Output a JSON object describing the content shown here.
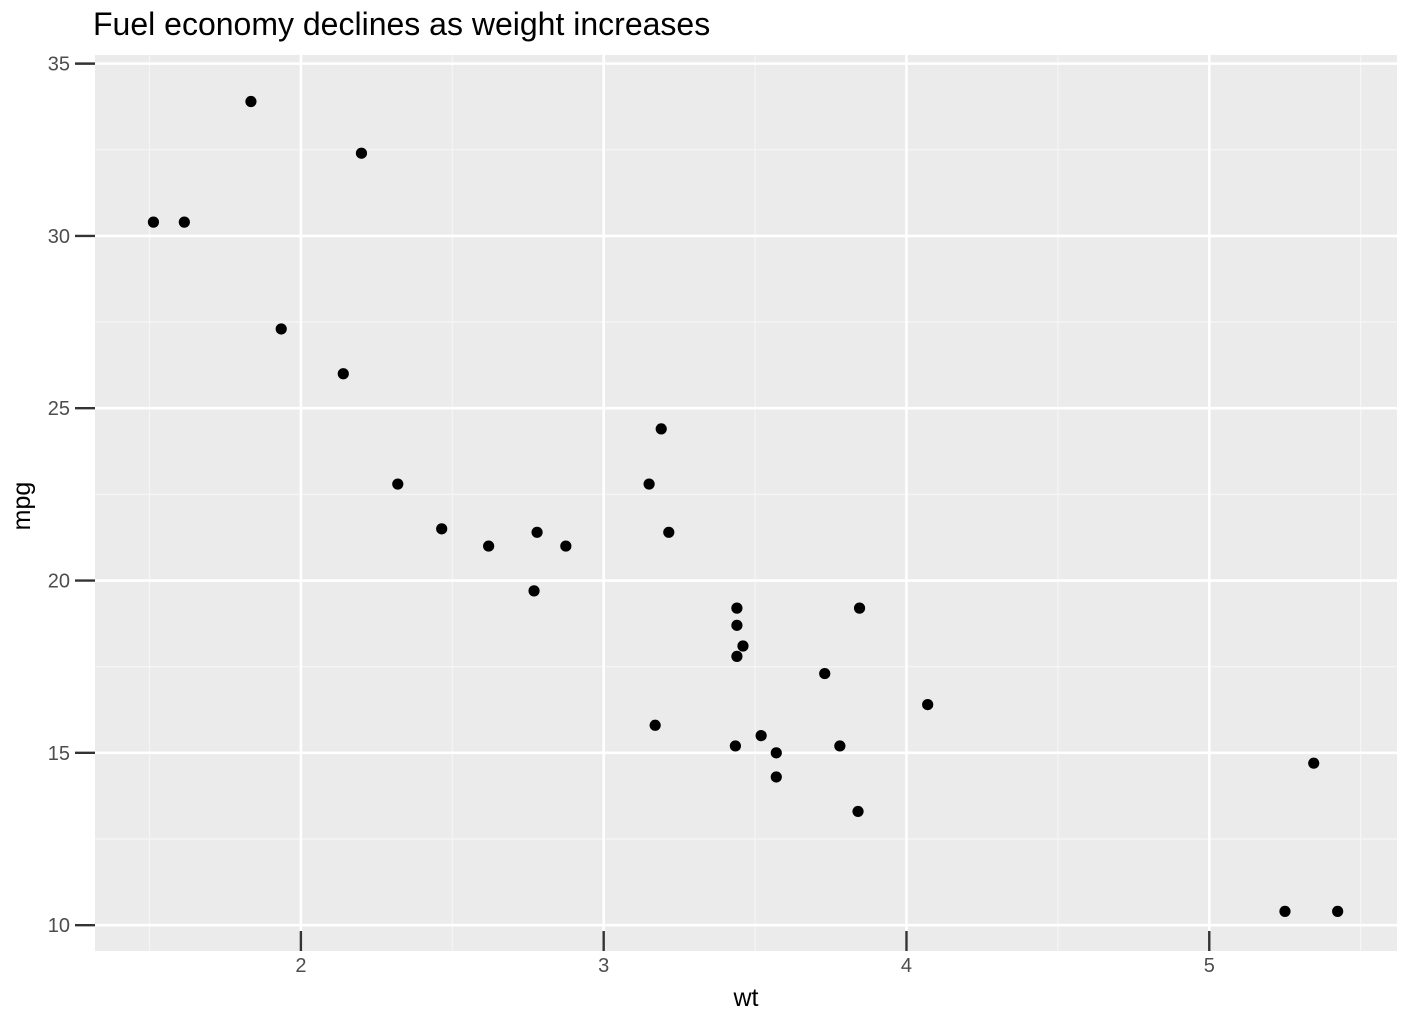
{
  "chart_data": {
    "type": "scatter",
    "title": "Fuel economy declines as weight increases",
    "xlabel": "wt",
    "ylabel": "mpg",
    "xlim": [
      1.32,
      5.62
    ],
    "ylim": [
      9.25,
      35.25
    ],
    "x_ticks": [
      2,
      3,
      4,
      5
    ],
    "x_tick_labels": [
      "2",
      "3",
      "4",
      "5"
    ],
    "x_minor_ticks": [
      1.5,
      2.5,
      3.5,
      4.5,
      5.5
    ],
    "y_ticks": [
      10,
      15,
      20,
      25,
      30,
      35
    ],
    "y_tick_labels": [
      "10",
      "15",
      "20",
      "25",
      "30",
      "35"
    ],
    "y_minor_ticks": [
      12.5,
      17.5,
      22.5,
      27.5,
      32.5
    ],
    "grid": true,
    "legend": "none",
    "series": [
      {
        "points": [
          {
            "x": 1.513,
            "y": 30.4
          },
          {
            "x": 1.615,
            "y": 30.4
          },
          {
            "x": 1.835,
            "y": 33.9
          },
          {
            "x": 1.935,
            "y": 27.3
          },
          {
            "x": 2.14,
            "y": 26.0
          },
          {
            "x": 2.2,
            "y": 32.4
          },
          {
            "x": 2.32,
            "y": 22.8
          },
          {
            "x": 2.465,
            "y": 21.5
          },
          {
            "x": 2.62,
            "y": 21.0
          },
          {
            "x": 2.77,
            "y": 19.7
          },
          {
            "x": 2.78,
            "y": 21.4
          },
          {
            "x": 2.875,
            "y": 21.0
          },
          {
            "x": 3.15,
            "y": 22.8
          },
          {
            "x": 3.17,
            "y": 15.8
          },
          {
            "x": 3.19,
            "y": 24.4
          },
          {
            "x": 3.215,
            "y": 21.4
          },
          {
            "x": 3.435,
            "y": 15.2
          },
          {
            "x": 3.44,
            "y": 18.7
          },
          {
            "x": 3.44,
            "y": 19.2
          },
          {
            "x": 3.44,
            "y": 17.8
          },
          {
            "x": 3.46,
            "y": 18.1
          },
          {
            "x": 3.52,
            "y": 15.5
          },
          {
            "x": 3.57,
            "y": 14.3
          },
          {
            "x": 3.57,
            "y": 15.0
          },
          {
            "x": 3.73,
            "y": 17.3
          },
          {
            "x": 3.78,
            "y": 15.2
          },
          {
            "x": 3.84,
            "y": 13.3
          },
          {
            "x": 3.845,
            "y": 19.2
          },
          {
            "x": 4.07,
            "y": 16.4
          },
          {
            "x": 5.25,
            "y": 10.4
          },
          {
            "x": 5.345,
            "y": 14.7
          },
          {
            "x": 5.424,
            "y": 10.4
          }
        ]
      }
    ]
  },
  "colors": {
    "panel_background": "#ebebeb",
    "grid_major": "#ffffff",
    "grid_minor": "#f5f5f5",
    "point": "#000000",
    "axis_text": "#4d4d4d",
    "axis_title": "#000000"
  }
}
